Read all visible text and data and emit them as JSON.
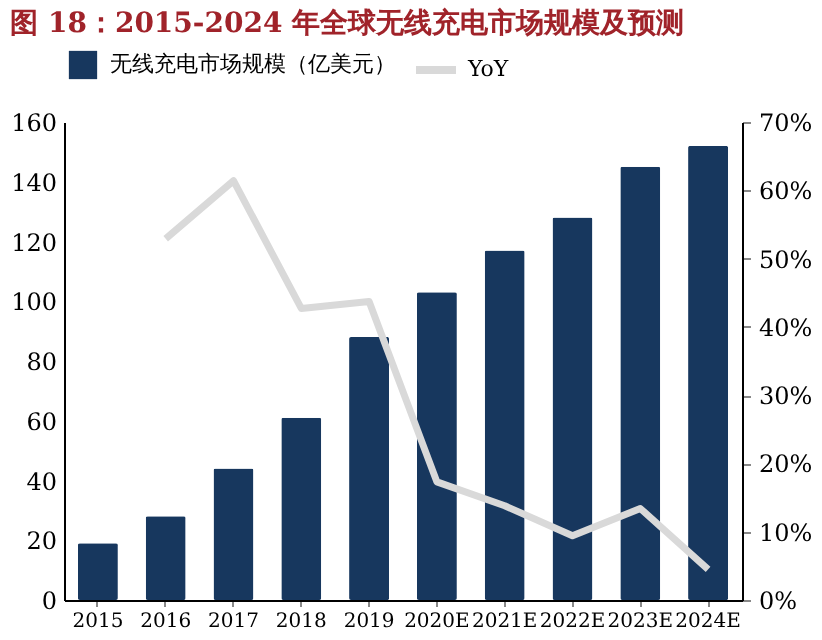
{
  "chart_data": {
    "type": "bar",
    "title": "图 18：2015-2024 年全球无线充电市场规模及预测",
    "categories": [
      "2015",
      "2016",
      "2017",
      "2018",
      "2019",
      "2020E",
      "2021E",
      "2022E",
      "2023E",
      "2024E"
    ],
    "series": [
      {
        "name": "无线充电市场规模（亿美元）",
        "color": "#17375e",
        "values": [
          19,
          28,
          44,
          61,
          88,
          103,
          117,
          128,
          145,
          152
        ]
      },
      {
        "name": "YoY",
        "type": "line",
        "axis": "y2",
        "color": "#d9d9d9",
        "values": [
          null,
          52.9,
          61.4,
          42.7,
          43.7,
          17.3,
          13.8,
          9.4,
          13.4,
          4.5
        ]
      }
    ],
    "ylim": [
      0,
      160
    ],
    "yticks": [
      0,
      20,
      40,
      60,
      80,
      100,
      120,
      140,
      160
    ],
    "y2lim": [
      0,
      70
    ],
    "y2ticks": [
      {
        "value": 0,
        "label": "0%"
      },
      {
        "value": 10,
        "label": "10%"
      },
      {
        "value": 20,
        "label": "20%"
      },
      {
        "value": 30,
        "label": "30%"
      },
      {
        "value": 40,
        "label": "40%"
      },
      {
        "value": 50,
        "label": "50%"
      },
      {
        "value": 60,
        "label": "60%"
      },
      {
        "value": 70,
        "label": "70%"
      }
    ],
    "grid": false,
    "legend": "top",
    "marker": "none",
    "line_style": "solid"
  }
}
